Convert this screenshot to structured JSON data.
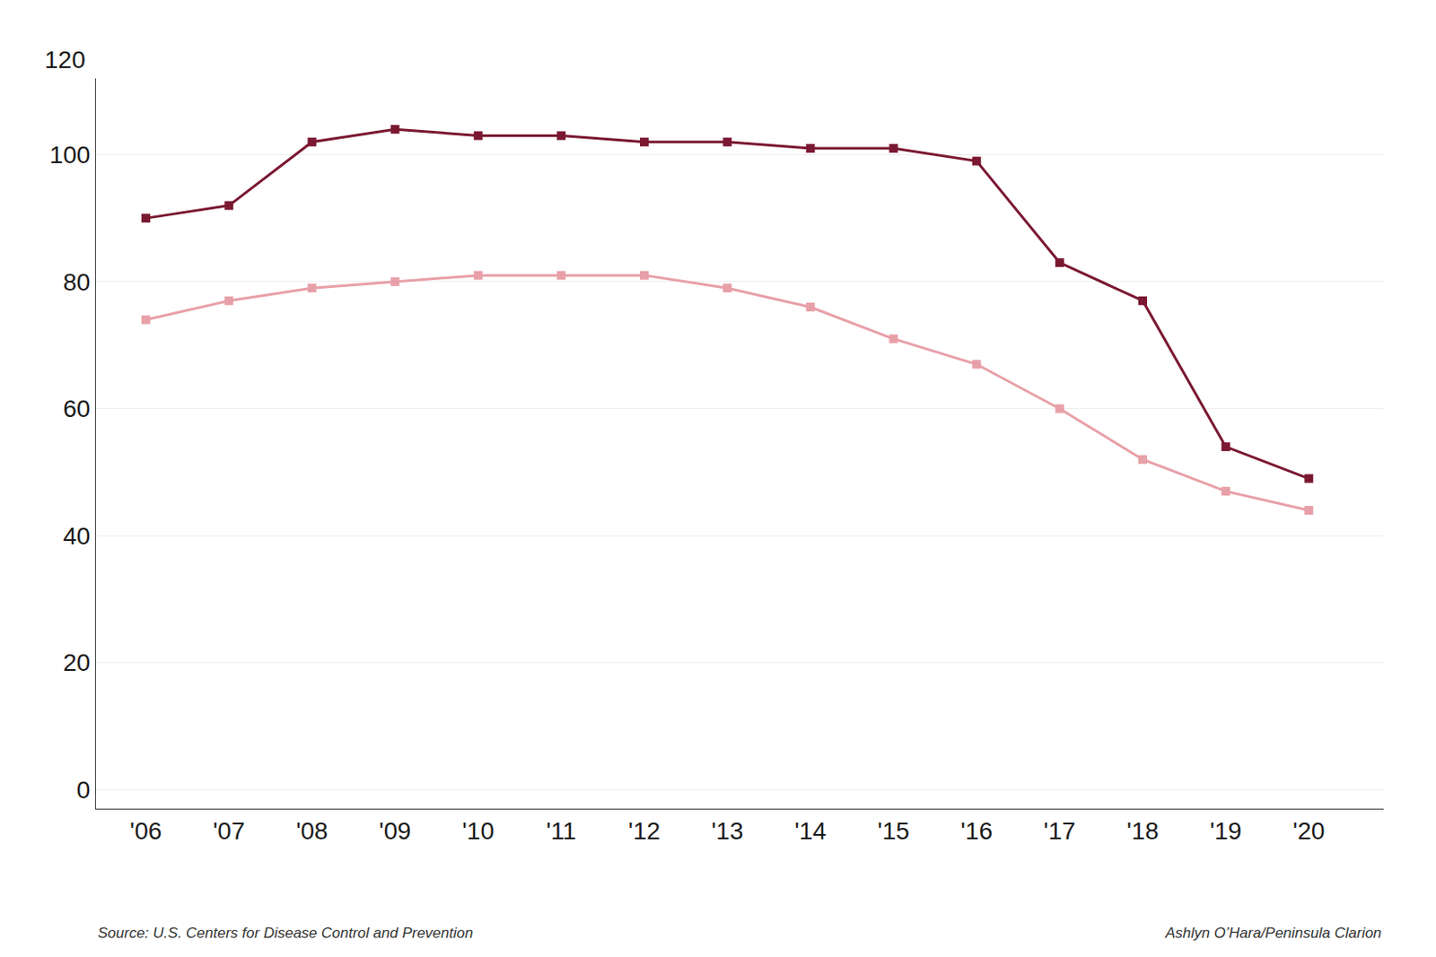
{
  "chart_data": {
    "type": "line",
    "x": [
      2006,
      2007,
      2008,
      2009,
      2010,
      2011,
      2012,
      2013,
      2014,
      2015,
      2016,
      2017,
      2018,
      2019,
      2020
    ],
    "series": [
      {
        "color": "#E8A0A8",
        "marker": "square",
        "line_style": "solid",
        "values": [
          74,
          77,
          79,
          80,
          81,
          81,
          81,
          79,
          76,
          71,
          67,
          60,
          52,
          47,
          44
        ]
      },
      {
        "color": "#7B1832",
        "marker": "square",
        "line_style": "solid",
        "values": [
          90,
          92,
          102,
          104,
          103,
          103,
          102,
          102,
          101,
          101,
          99,
          83,
          77,
          54,
          49
        ]
      }
    ],
    "xlim": [
      2005.4,
      2020.9
    ],
    "xticks": [
      {
        "value": 2006,
        "label": "'06"
      },
      {
        "value": 2007,
        "label": "'07"
      },
      {
        "value": 2008,
        "label": "'08"
      },
      {
        "value": 2009,
        "label": "'09"
      },
      {
        "value": 2010,
        "label": "'10"
      },
      {
        "value": 2011,
        "label": "'11"
      },
      {
        "value": 2012,
        "label": "'12"
      },
      {
        "value": 2013,
        "label": "'13"
      },
      {
        "value": 2014,
        "label": "'14"
      },
      {
        "value": 2015,
        "label": "'15"
      },
      {
        "value": 2016,
        "label": "'16"
      },
      {
        "value": 2017,
        "label": "'17"
      },
      {
        "value": 2018,
        "label": "'18"
      },
      {
        "value": 2019,
        "label": "'19"
      },
      {
        "value": 2020,
        "label": "'20"
      }
    ],
    "ylim": [
      -3,
      112
    ],
    "yticks": [
      0,
      20,
      40,
      60,
      80,
      100
    ],
    "grid": "y",
    "annotations": [
      "120",
      "Source: U.S. Centers for Disease Control and Prevention",
      "Ashlyn O’Hara/Peninsula Clarion"
    ]
  }
}
